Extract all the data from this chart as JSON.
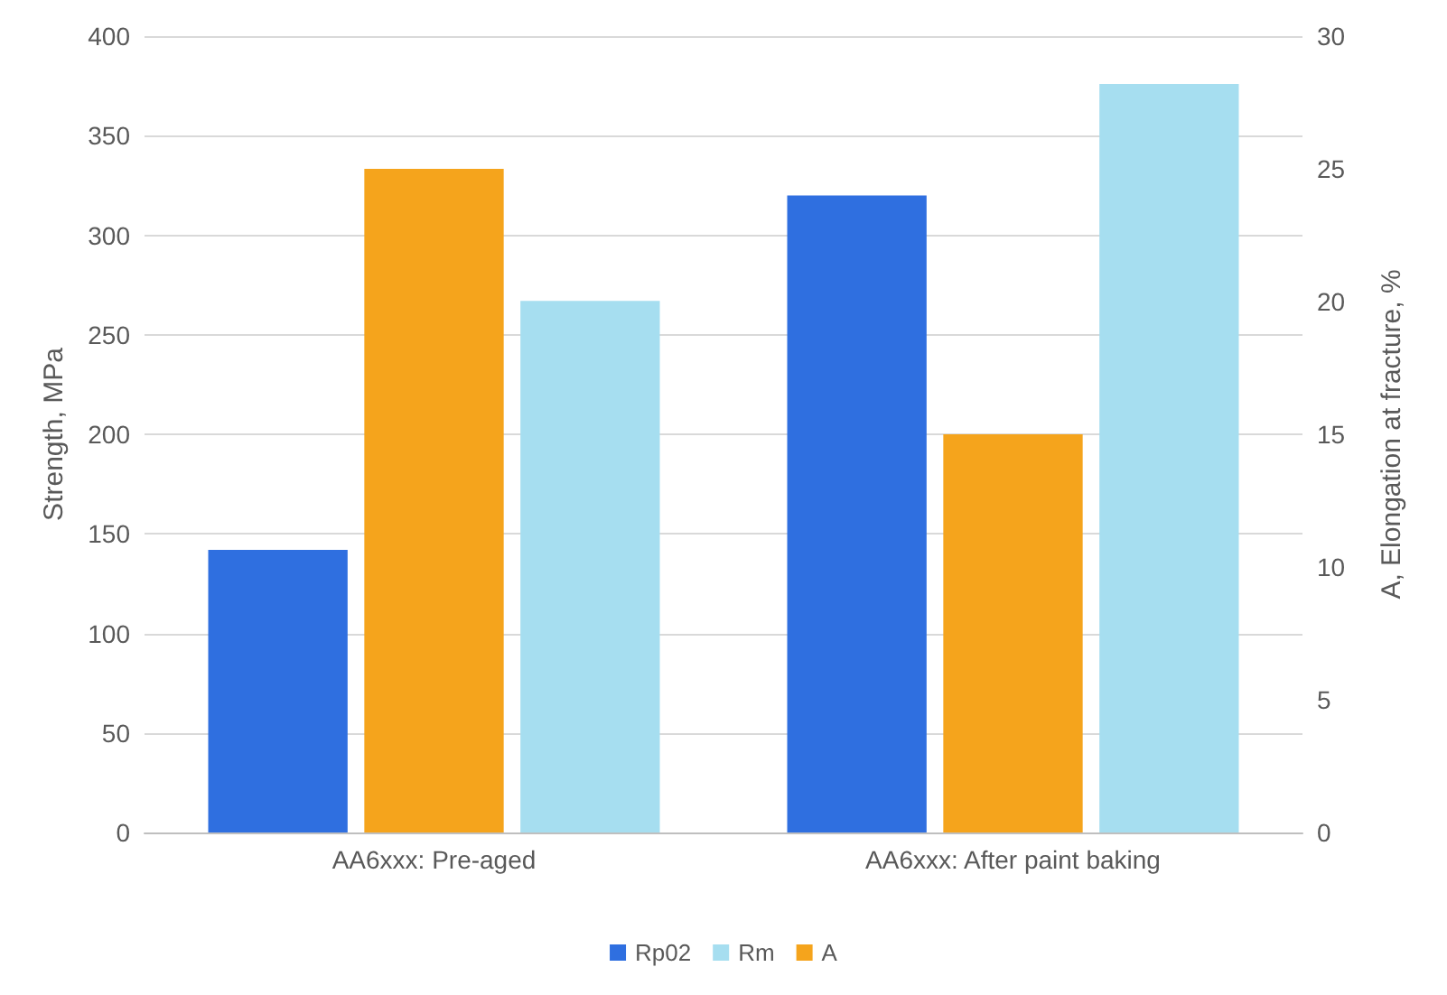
{
  "chart_data": {
    "type": "bar",
    "categories": [
      "AA6xxx: Pre-aged",
      "AA6xxx: After paint baking"
    ],
    "series": [
      {
        "name": "Rp02",
        "color": "#2f6fe0",
        "values": [
          142,
          320
        ]
      },
      {
        "name": "A",
        "color": "#f5a41c",
        "values": [
          25,
          15
        ],
        "axis": "y2"
      },
      {
        "name": "Rm",
        "color": "#a6def0",
        "values": [
          267,
          376
        ]
      }
    ],
    "ylabel": "Strength, MPa",
    "y2label": "A, Elongation at fracture, %",
    "ylim": [
      0,
      400
    ],
    "yticks": [
      0,
      50,
      100,
      150,
      200,
      250,
      300,
      350,
      400
    ],
    "y2lim": [
      0,
      30
    ],
    "y2ticks": [
      0,
      5,
      10,
      15,
      20,
      25,
      30
    ],
    "grid": "y",
    "legend": "bottom"
  }
}
